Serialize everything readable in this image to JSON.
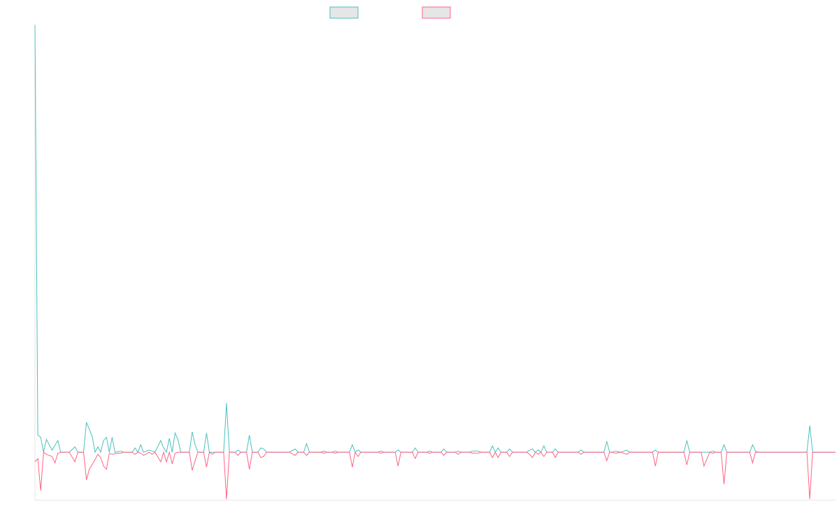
{
  "chart_data": {
    "type": "line",
    "title": "",
    "xlabel": "",
    "ylabel": "",
    "grid": false,
    "legend_position": "top-center",
    "x_count": 280,
    "ylim": [
      -45,
      400
    ],
    "series": [
      {
        "name": "",
        "color": "#4bc0c0",
        "points": [
          [
            0,
            400
          ],
          [
            1,
            16
          ],
          [
            2,
            14
          ],
          [
            3,
            0
          ],
          [
            4,
            12
          ],
          [
            6,
            2
          ],
          [
            8,
            11
          ],
          [
            9,
            0
          ],
          [
            12,
            0
          ],
          [
            14,
            5
          ],
          [
            15,
            0
          ],
          [
            17,
            0
          ],
          [
            18,
            28
          ],
          [
            20,
            15
          ],
          [
            21,
            0
          ],
          [
            22,
            5
          ],
          [
            23,
            0
          ],
          [
            24,
            11
          ],
          [
            25,
            14
          ],
          [
            26,
            0
          ],
          [
            27,
            14
          ],
          [
            28,
            0
          ],
          [
            30,
            1
          ],
          [
            31,
            0
          ],
          [
            34,
            0
          ],
          [
            35,
            4
          ],
          [
            36,
            0
          ],
          [
            37,
            7
          ],
          [
            38,
            0
          ],
          [
            40,
            2
          ],
          [
            41,
            1
          ],
          [
            42,
            0
          ],
          [
            44,
            11
          ],
          [
            45,
            4
          ],
          [
            46,
            0
          ],
          [
            47,
            13
          ],
          [
            48,
            0
          ],
          [
            49,
            18
          ],
          [
            50,
            12
          ],
          [
            51,
            0
          ],
          [
            54,
            0
          ],
          [
            55,
            19
          ],
          [
            56,
            7
          ],
          [
            57,
            0
          ],
          [
            59,
            0
          ],
          [
            60,
            18
          ],
          [
            61,
            0
          ],
          [
            62,
            0
          ],
          [
            63,
            0
          ],
          [
            64,
            0
          ],
          [
            66,
            0
          ],
          [
            67,
            46
          ],
          [
            68,
            0
          ],
          [
            70,
            0
          ],
          [
            71,
            2
          ],
          [
            72,
            0
          ],
          [
            74,
            0
          ],
          [
            75,
            16
          ],
          [
            76,
            0
          ],
          [
            78,
            0
          ],
          [
            79,
            4
          ],
          [
            80,
            3
          ],
          [
            81,
            0
          ],
          [
            89,
            0
          ],
          [
            91,
            3
          ],
          [
            92,
            0
          ],
          [
            94,
            0
          ],
          [
            95,
            8
          ],
          [
            96,
            0
          ],
          [
            100,
            0
          ],
          [
            101,
            1
          ],
          [
            102,
            0
          ],
          [
            104,
            0
          ],
          [
            105,
            1
          ],
          [
            106,
            0
          ],
          [
            110,
            0
          ],
          [
            111,
            7
          ],
          [
            112,
            0
          ],
          [
            113,
            2
          ],
          [
            114,
            0
          ],
          [
            120,
            0
          ],
          [
            121,
            1
          ],
          [
            122,
            0
          ],
          [
            126,
            0
          ],
          [
            127,
            2
          ],
          [
            128,
            0
          ],
          [
            132,
            0
          ],
          [
            133,
            4
          ],
          [
            134,
            0
          ],
          [
            137,
            0
          ],
          [
            138,
            1
          ],
          [
            139,
            0
          ],
          [
            142,
            0
          ],
          [
            143,
            3
          ],
          [
            144,
            0
          ],
          [
            147,
            0
          ],
          [
            148,
            1
          ],
          [
            149,
            0
          ],
          [
            152,
            0
          ],
          [
            153,
            1
          ],
          [
            155,
            1
          ],
          [
            156,
            0
          ],
          [
            159,
            0
          ],
          [
            160,
            6
          ],
          [
            161,
            0
          ],
          [
            162,
            4
          ],
          [
            163,
            0
          ],
          [
            165,
            0
          ],
          [
            166,
            3
          ],
          [
            167,
            0
          ],
          [
            172,
            0
          ],
          [
            173,
            2
          ],
          [
            174,
            3
          ],
          [
            175,
            0
          ],
          [
            176,
            2
          ],
          [
            177,
            0
          ],
          [
            178,
            6
          ],
          [
            179,
            0
          ],
          [
            181,
            0
          ],
          [
            182,
            3
          ],
          [
            183,
            0
          ],
          [
            184,
            0
          ],
          [
            187,
            0
          ],
          [
            188,
            0
          ],
          [
            190,
            0
          ],
          [
            191,
            2
          ],
          [
            192,
            0
          ],
          [
            199,
            0
          ],
          [
            200,
            10
          ],
          [
            201,
            0
          ],
          [
            202,
            0
          ],
          [
            203,
            1
          ],
          [
            205,
            0
          ],
          [
            207,
            2
          ],
          [
            208,
            0
          ],
          [
            211,
            0
          ],
          [
            212,
            0
          ],
          [
            213,
            0
          ],
          [
            216,
            0
          ],
          [
            217,
            2
          ],
          [
            218,
            0
          ],
          [
            227,
            0
          ],
          [
            228,
            11
          ],
          [
            229,
            0
          ],
          [
            233,
            0
          ],
          [
            234,
            0
          ],
          [
            236,
            0
          ],
          [
            237,
            1
          ],
          [
            238,
            0
          ],
          [
            240,
            0
          ],
          [
            241,
            7
          ],
          [
            242,
            0
          ],
          [
            244,
            0
          ],
          [
            245,
            0
          ],
          [
            246,
            0
          ],
          [
            247,
            0
          ],
          [
            250,
            0
          ],
          [
            251,
            7
          ],
          [
            252,
            1
          ],
          [
            253,
            0
          ],
          [
            270,
            0
          ],
          [
            271,
            25
          ],
          [
            272,
            0
          ],
          [
            280,
            0
          ]
        ]
      },
      {
        "name": "",
        "color": "#ff6384",
        "points": [
          [
            0,
            -9
          ],
          [
            1,
            -6
          ],
          [
            2,
            -36
          ],
          [
            3,
            0
          ],
          [
            4,
            -2
          ],
          [
            6,
            -4
          ],
          [
            7,
            -10
          ],
          [
            8,
            -1
          ],
          [
            9,
            0
          ],
          [
            12,
            0
          ],
          [
            14,
            -9
          ],
          [
            15,
            0
          ],
          [
            17,
            0
          ],
          [
            18,
            -26
          ],
          [
            19,
            -16
          ],
          [
            21,
            -7
          ],
          [
            22,
            -2
          ],
          [
            23,
            -5
          ],
          [
            24,
            -13
          ],
          [
            25,
            -16
          ],
          [
            26,
            -1
          ],
          [
            27,
            -2
          ],
          [
            29,
            -1
          ],
          [
            30,
            -1
          ],
          [
            31,
            0
          ],
          [
            34,
            0
          ],
          [
            35,
            -2
          ],
          [
            36,
            0
          ],
          [
            37,
            -1
          ],
          [
            38,
            -3
          ],
          [
            40,
            0
          ],
          [
            41,
            -2
          ],
          [
            42,
            0
          ],
          [
            44,
            -9
          ],
          [
            45,
            0
          ],
          [
            46,
            -9
          ],
          [
            47,
            0
          ],
          [
            48,
            -11
          ],
          [
            49,
            -1
          ],
          [
            50,
            0
          ],
          [
            54,
            0
          ],
          [
            55,
            -17
          ],
          [
            56,
            -8
          ],
          [
            57,
            0
          ],
          [
            59,
            0
          ],
          [
            60,
            -14
          ],
          [
            61,
            0
          ],
          [
            62,
            -2
          ],
          [
            63,
            0
          ],
          [
            64,
            0
          ],
          [
            66,
            0
          ],
          [
            67,
            -44
          ],
          [
            68,
            0
          ],
          [
            70,
            0
          ],
          [
            71,
            -3
          ],
          [
            72,
            0
          ],
          [
            74,
            0
          ],
          [
            75,
            -16
          ],
          [
            76,
            0
          ],
          [
            78,
            0
          ],
          [
            79,
            -5
          ],
          [
            80,
            -4
          ],
          [
            81,
            0
          ],
          [
            89,
            0
          ],
          [
            91,
            -3
          ],
          [
            92,
            0
          ],
          [
            94,
            0
          ],
          [
            95,
            -3
          ],
          [
            96,
            0
          ],
          [
            100,
            0
          ],
          [
            101,
            -1
          ],
          [
            102,
            0
          ],
          [
            104,
            0
          ],
          [
            105,
            -1
          ],
          [
            106,
            0
          ],
          [
            110,
            0
          ],
          [
            111,
            -14
          ],
          [
            112,
            0
          ],
          [
            113,
            -4
          ],
          [
            114,
            0
          ],
          [
            120,
            0
          ],
          [
            121,
            -1
          ],
          [
            122,
            0
          ],
          [
            126,
            0
          ],
          [
            127,
            -13
          ],
          [
            128,
            0
          ],
          [
            132,
            0
          ],
          [
            133,
            -6
          ],
          [
            134,
            0
          ],
          [
            137,
            0
          ],
          [
            138,
            -1
          ],
          [
            139,
            0
          ],
          [
            142,
            0
          ],
          [
            143,
            -3
          ],
          [
            144,
            0
          ],
          [
            147,
            0
          ],
          [
            148,
            -2
          ],
          [
            149,
            0
          ],
          [
            152,
            0
          ],
          [
            153,
            -1
          ],
          [
            155,
            -1
          ],
          [
            156,
            0
          ],
          [
            159,
            0
          ],
          [
            160,
            -5
          ],
          [
            161,
            0
          ],
          [
            162,
            -5
          ],
          [
            163,
            0
          ],
          [
            165,
            0
          ],
          [
            166,
            -4
          ],
          [
            167,
            0
          ],
          [
            172,
            0
          ],
          [
            173,
            -2
          ],
          [
            174,
            -5
          ],
          [
            175,
            0
          ],
          [
            176,
            -2
          ],
          [
            177,
            0
          ],
          [
            178,
            -4
          ],
          [
            179,
            0
          ],
          [
            181,
            0
          ],
          [
            182,
            -5
          ],
          [
            183,
            0
          ],
          [
            184,
            0
          ],
          [
            187,
            0
          ],
          [
            188,
            0
          ],
          [
            190,
            0
          ],
          [
            191,
            -2
          ],
          [
            192,
            0
          ],
          [
            199,
            0
          ],
          [
            200,
            -8
          ],
          [
            201,
            0
          ],
          [
            202,
            0
          ],
          [
            203,
            -1
          ],
          [
            205,
            0
          ],
          [
            207,
            -2
          ],
          [
            208,
            0
          ],
          [
            211,
            0
          ],
          [
            212,
            0
          ],
          [
            213,
            0
          ],
          [
            216,
            0
          ],
          [
            217,
            -13
          ],
          [
            218,
            0
          ],
          [
            227,
            0
          ],
          [
            228,
            -12
          ],
          [
            229,
            0
          ],
          [
            233,
            0
          ],
          [
            234,
            -13
          ],
          [
            236,
            0
          ],
          [
            237,
            -1
          ],
          [
            238,
            0
          ],
          [
            240,
            0
          ],
          [
            241,
            -30
          ],
          [
            242,
            0
          ],
          [
            244,
            0
          ],
          [
            245,
            0
          ],
          [
            246,
            0
          ],
          [
            247,
            0
          ],
          [
            250,
            0
          ],
          [
            251,
            -10
          ],
          [
            252,
            0
          ],
          [
            253,
            0
          ],
          [
            270,
            0
          ],
          [
            271,
            -44
          ],
          [
            272,
            0
          ],
          [
            280,
            0
          ]
        ]
      }
    ]
  }
}
